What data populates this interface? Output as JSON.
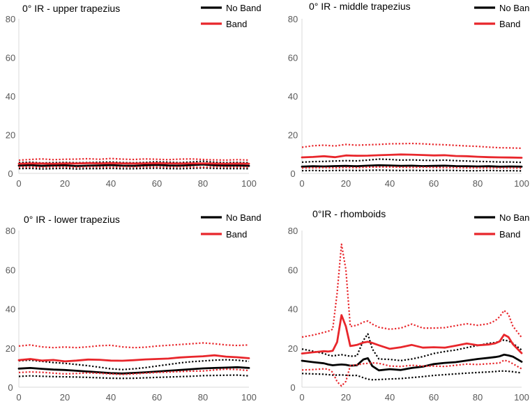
{
  "legend_labels": {
    "no_band": "No Band",
    "band": "Band"
  },
  "colors": {
    "no_band": "#000000",
    "band": "#e8262b",
    "axis": "#d9d9d9",
    "text": "#595959",
    "title": "#000000"
  },
  "x_ticks": [
    0,
    20,
    40,
    60,
    80,
    100
  ],
  "y_ticks": [
    0,
    20,
    40,
    60,
    80
  ],
  "chart_data": [
    {
      "type": "line",
      "title": "0° IR - upper trapezius",
      "x": [
        0,
        5,
        10,
        15,
        20,
        25,
        30,
        35,
        40,
        45,
        50,
        55,
        60,
        65,
        70,
        75,
        80,
        85,
        90,
        95,
        100
      ],
      "xlim": [
        0,
        100
      ],
      "ylim": [
        0,
        80
      ],
      "legend_position": "top-right",
      "series": [
        {
          "name": "No Band",
          "style": "solid",
          "values": [
            4,
            4.3,
            3.9,
            4.1,
            4.2,
            3.8,
            4,
            4.1,
            4.3,
            4,
            3.9,
            4.2,
            4.4,
            4.1,
            4,
            4.3,
            4.6,
            4.2,
            4,
            4.1,
            3.9
          ]
        },
        {
          "name": "No Band",
          "style": "dotted",
          "values": [
            5.6,
            5.8,
            5.4,
            5.6,
            5.7,
            5.5,
            5.6,
            5.8,
            5.9,
            5.6,
            5.5,
            5.7,
            6,
            5.8,
            5.6,
            5.9,
            6.3,
            5.8,
            5.6,
            5.7,
            5.5
          ]
        },
        {
          "name": "No Band",
          "style": "dotted",
          "values": [
            2.5,
            2.6,
            2.3,
            2.5,
            2.6,
            2.3,
            2.5,
            2.5,
            2.6,
            2.4,
            2.4,
            2.6,
            2.7,
            2.5,
            2.4,
            2.6,
            2.8,
            2.6,
            2.5,
            2.5,
            2.4
          ]
        },
        {
          "name": "Band",
          "style": "solid",
          "values": [
            5,
            5.2,
            5.1,
            5,
            5.2,
            5.1,
            5.3,
            5.2,
            5.3,
            5.2,
            5.1,
            5.2,
            5.3,
            5.2,
            5.1,
            5.2,
            5.2,
            5.1,
            5,
            5.1,
            5
          ]
        },
        {
          "name": "Band",
          "style": "dotted",
          "values": [
            6.8,
            7.2,
            7.5,
            7.1,
            7.3,
            7.4,
            7.6,
            7.3,
            7.7,
            7.4,
            7.2,
            7.5,
            7.3,
            7.1,
            7.4,
            7.5,
            7.2,
            7,
            6.9,
            7.1,
            6.9
          ]
        },
        {
          "name": "Band",
          "style": "dotted",
          "values": [
            3.4,
            3.3,
            3.2,
            3.4,
            3.3,
            3.2,
            3.4,
            3.3,
            3.2,
            3.4,
            3.3,
            3.4,
            3.3,
            3.2,
            3.4,
            3.3,
            3.2,
            3.4,
            3.3,
            3.2,
            3.3
          ]
        }
      ]
    },
    {
      "type": "line",
      "title": "0° IR - middle trapezius",
      "x": [
        0,
        5,
        10,
        15,
        20,
        25,
        30,
        35,
        40,
        45,
        50,
        55,
        60,
        65,
        70,
        75,
        80,
        85,
        90,
        95,
        100
      ],
      "xlim": [
        0,
        100
      ],
      "ylim": [
        0,
        80
      ],
      "legend_position": "top-right",
      "series": [
        {
          "name": "No Band",
          "style": "solid",
          "values": [
            3.5,
            3.7,
            3.6,
            3.8,
            3.9,
            3.7,
            4,
            4.2,
            4.1,
            3.9,
            4,
            3.8,
            3.9,
            4,
            3.8,
            3.7,
            3.6,
            3.7,
            3.5,
            3.6,
            3.5
          ]
        },
        {
          "name": "No Band",
          "style": "dotted",
          "values": [
            5.8,
            6.1,
            6.2,
            6.4,
            6.6,
            6.5,
            6.9,
            7.4,
            7.2,
            6.9,
            7,
            6.8,
            6.7,
            6.9,
            6.6,
            6.4,
            6.2,
            6.1,
            5.9,
            5.9,
            5.7
          ]
        },
        {
          "name": "No Band",
          "style": "dotted",
          "values": [
            1.4,
            1.5,
            1.4,
            1.5,
            1.6,
            1.5,
            1.6,
            1.7,
            1.6,
            1.5,
            1.6,
            1.5,
            1.5,
            1.6,
            1.5,
            1.4,
            1.4,
            1.5,
            1.4,
            1.4,
            1.3
          ]
        },
        {
          "name": "Band",
          "style": "solid",
          "values": [
            8.3,
            8.5,
            8.9,
            8.4,
            9.3,
            9.1,
            9.2,
            9.4,
            9.6,
            9.8,
            9.7,
            9.5,
            9.3,
            9.4,
            9,
            8.9,
            8.6,
            8.4,
            8.3,
            8.2,
            8.1
          ]
        },
        {
          "name": "Band",
          "style": "dotted",
          "values": [
            13.5,
            14.3,
            14.6,
            14.2,
            15,
            14.6,
            14.8,
            15,
            15.3,
            15.4,
            15.5,
            15.3,
            15,
            14.8,
            14.5,
            14.2,
            14,
            13.6,
            13.3,
            13.2,
            13
          ]
        },
        {
          "name": "Band",
          "style": "dotted",
          "values": [
            2.8,
            2.9,
            3,
            2.9,
            3.1,
            3,
            3.2,
            3.3,
            3.3,
            3.2,
            3.1,
            3.2,
            3.1,
            3,
            3,
            2.9,
            2.9,
            2.8,
            2.8,
            2.8,
            2.7
          ]
        }
      ]
    },
    {
      "type": "line",
      "title": "0° IR - lower trapezius",
      "x": [
        0,
        5,
        10,
        15,
        20,
        25,
        30,
        35,
        40,
        45,
        50,
        55,
        60,
        65,
        70,
        75,
        80,
        85,
        90,
        95,
        100
      ],
      "xlim": [
        0,
        100
      ],
      "ylim": [
        0,
        80
      ],
      "legend_position": "top-right",
      "series": [
        {
          "name": "No Band",
          "style": "solid",
          "values": [
            9.5,
            9.8,
            9.4,
            9,
            8.8,
            8.4,
            8,
            7.6,
            7.2,
            7,
            7.3,
            7.6,
            8,
            8.4,
            8.8,
            9.2,
            9.6,
            9.8,
            10,
            10.2,
            9.8
          ]
        },
        {
          "name": "No Band",
          "style": "dotted",
          "values": [
            13.5,
            13.8,
            13.2,
            12.6,
            12.2,
            11.6,
            11,
            10.2,
            9.4,
            9,
            9.4,
            10,
            10.8,
            11.6,
            12.4,
            13,
            13.4,
            13.8,
            14,
            13.8,
            13.2
          ]
        },
        {
          "name": "No Band",
          "style": "dotted",
          "values": [
            5.5,
            5.8,
            5.6,
            5.4,
            5.3,
            5.2,
            5,
            4.8,
            4.6,
            4.5,
            4.6,
            4.8,
            5,
            5.2,
            5.4,
            5.6,
            5.9,
            6,
            6.1,
            6.2,
            5.8
          ]
        },
        {
          "name": "Band",
          "style": "solid",
          "values": [
            13.8,
            14.4,
            13.6,
            13.9,
            13.2,
            13.6,
            14.1,
            14,
            13.6,
            13.5,
            13.8,
            14.2,
            14.4,
            14.6,
            15.2,
            15.5,
            15.8,
            16.3,
            15.6,
            15.3,
            14.8
          ]
        },
        {
          "name": "Band",
          "style": "dotted",
          "values": [
            21,
            21.6,
            20.6,
            20.2,
            20.5,
            20.2,
            20.6,
            21.2,
            21.4,
            20.6,
            20.2,
            20.4,
            21,
            21.4,
            21.8,
            22.2,
            22.6,
            22.2,
            21.6,
            21.3,
            21.6
          ]
        },
        {
          "name": "Band",
          "style": "dotted",
          "values": [
            7.5,
            7.8,
            7.6,
            7.2,
            6.8,
            7,
            7.3,
            7.1,
            6.8,
            6.5,
            6.8,
            7.2,
            7.5,
            7.7,
            8,
            8.2,
            8.3,
            8.8,
            9.2,
            9,
            8.5
          ]
        }
      ]
    },
    {
      "type": "line",
      "title": "0°IR - rhomboids",
      "x": [
        0,
        5,
        10,
        12,
        14,
        16,
        18,
        20,
        22,
        25,
        28,
        30,
        32,
        35,
        40,
        45,
        50,
        55,
        60,
        65,
        70,
        75,
        80,
        85,
        88,
        90,
        92,
        94,
        96,
        100
      ],
      "xlim": [
        0,
        100
      ],
      "ylim": [
        0,
        80
      ],
      "legend_position": "top-right",
      "series": [
        {
          "name": "No Band",
          "style": "solid",
          "values": [
            13.5,
            12.8,
            12.2,
            11.6,
            11.2,
            11.4,
            11.6,
            11.4,
            11,
            11.2,
            14.2,
            14.8,
            10.8,
            8.6,
            9.2,
            8.8,
            9.8,
            10.5,
            11.8,
            12.4,
            12.8,
            13.6,
            14.4,
            15,
            15.4,
            15.8,
            16.6,
            16.2,
            15.6,
            13
          ]
        },
        {
          "name": "No Band",
          "style": "dotted",
          "values": [
            19.5,
            18.4,
            17.2,
            16.4,
            16,
            16.3,
            16.6,
            16.2,
            15.8,
            16,
            24,
            27.2,
            19.6,
            14.4,
            14.2,
            13.6,
            14.4,
            15.6,
            17.2,
            18.2,
            19,
            20.2,
            21.3,
            22.4,
            22.8,
            23.4,
            24.1,
            23.6,
            22.4,
            19
          ]
        },
        {
          "name": "No Band",
          "style": "dotted",
          "values": [
            7,
            6.8,
            6.6,
            6.4,
            6.2,
            6.2,
            6.3,
            6.1,
            6,
            6,
            4.8,
            4.1,
            3.8,
            3.9,
            4.2,
            4.4,
            4.9,
            5.4,
            6,
            6.4,
            6.8,
            7.2,
            7.5,
            7.8,
            8,
            8.2,
            8.3,
            8.1,
            7.9,
            7.3
          ]
        },
        {
          "name": "Band",
          "style": "solid",
          "values": [
            17.2,
            17.8,
            18.4,
            18.2,
            18.6,
            23,
            36.8,
            31,
            21,
            21.6,
            22.8,
            23.2,
            22.6,
            21.4,
            19.6,
            20.4,
            21.6,
            20.2,
            20.4,
            20.2,
            21.2,
            22.3,
            21.4,
            21.8,
            22.4,
            23.4,
            26.8,
            25.6,
            22,
            17.4
          ]
        },
        {
          "name": "Band",
          "style": "dotted",
          "values": [
            25.6,
            26.6,
            28,
            28.6,
            29.6,
            48,
            73,
            60,
            31,
            31.6,
            33.2,
            33.8,
            32.2,
            30.6,
            29.6,
            30.2,
            32.2,
            30.2,
            30.2,
            30.4,
            31.4,
            32.4,
            31.6,
            32.4,
            34,
            36,
            39.2,
            37.2,
            31.2,
            25.4
          ]
        },
        {
          "name": "Band",
          "style": "dotted",
          "values": [
            8.8,
            9,
            9.4,
            9.2,
            7.6,
            2.8,
            0.6,
            3,
            11,
            11.4,
            12,
            12.2,
            12.4,
            12.2,
            10.8,
            10.6,
            11.2,
            10.8,
            10.8,
            10.6,
            11.2,
            11.8,
            11.6,
            12,
            12.2,
            12.4,
            13.8,
            13.2,
            12,
            9.4
          ]
        }
      ]
    }
  ]
}
